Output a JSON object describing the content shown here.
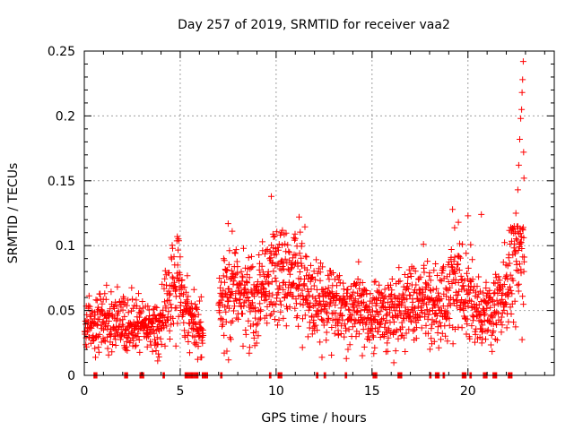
{
  "chart_data": {
    "type": "scatter",
    "title": "Day 257 of 2019, SRMTID for receiver vaa2",
    "xlabel": "GPS time / hours",
    "ylabel": "SRMTID / TECUs",
    "xlim": [
      0,
      24.5
    ],
    "ylim": [
      0,
      0.25
    ],
    "xticks": [
      0,
      5,
      10,
      15,
      20
    ],
    "xtick_labels": [
      "0",
      "5",
      "10",
      "15",
      "20"
    ],
    "yticks": [
      0,
      0.05,
      0.1,
      0.15,
      0.2,
      0.25
    ],
    "ytick_labels": [
      "0",
      "0.05",
      "0.1",
      "0.15",
      "0.2",
      "0.25"
    ],
    "grid": true,
    "marker": "+",
    "color": "#ff0000",
    "series": [
      {
        "name": "SRMTID",
        "profile": [
          [
            0.0,
            0.036
          ],
          [
            0.5,
            0.038
          ],
          [
            1.0,
            0.045
          ],
          [
            1.5,
            0.042
          ],
          [
            2.0,
            0.04
          ],
          [
            2.5,
            0.04
          ],
          [
            3.0,
            0.038
          ],
          [
            3.5,
            0.036
          ],
          [
            4.0,
            0.04
          ],
          [
            4.5,
            0.06
          ],
          [
            5.0,
            0.07
          ],
          [
            5.5,
            0.045
          ],
          [
            6.0,
            0.035
          ],
          [
            7.0,
            0.058
          ],
          [
            7.5,
            0.07
          ],
          [
            8.0,
            0.062
          ],
          [
            8.5,
            0.058
          ],
          [
            9.0,
            0.06
          ],
          [
            9.5,
            0.065
          ],
          [
            10.0,
            0.072
          ],
          [
            10.5,
            0.075
          ],
          [
            11.0,
            0.08
          ],
          [
            11.5,
            0.07
          ],
          [
            12.0,
            0.055
          ],
          [
            12.5,
            0.055
          ],
          [
            13.0,
            0.055
          ],
          [
            13.5,
            0.052
          ],
          [
            14.0,
            0.05
          ],
          [
            14.5,
            0.048
          ],
          [
            15.0,
            0.046
          ],
          [
            15.5,
            0.048
          ],
          [
            16.0,
            0.048
          ],
          [
            16.5,
            0.05
          ],
          [
            17.0,
            0.052
          ],
          [
            17.5,
            0.058
          ],
          [
            18.0,
            0.055
          ],
          [
            18.5,
            0.052
          ],
          [
            19.0,
            0.06
          ],
          [
            19.5,
            0.075
          ],
          [
            20.0,
            0.06
          ],
          [
            20.5,
            0.05
          ],
          [
            21.0,
            0.045
          ],
          [
            21.5,
            0.05
          ],
          [
            22.0,
            0.07
          ],
          [
            22.5,
            0.09
          ],
          [
            22.8,
            0.1
          ]
        ],
        "gaps": [
          [
            6.2,
            7.0
          ],
          [
            23.0,
            24.5
          ]
        ],
        "spikes": [
          [
            9.75,
            0.138
          ],
          [
            11.2,
            0.122
          ],
          [
            19.2,
            0.128
          ],
          [
            20.0,
            0.123
          ],
          [
            20.7,
            0.124
          ],
          [
            22.5,
            0.125
          ],
          [
            22.6,
            0.143
          ],
          [
            22.65,
            0.162
          ],
          [
            22.7,
            0.182
          ],
          [
            22.75,
            0.198
          ],
          [
            22.8,
            0.205
          ],
          [
            22.82,
            0.218
          ],
          [
            22.85,
            0.228
          ],
          [
            22.88,
            0.242
          ],
          [
            22.9,
            0.172
          ],
          [
            22.92,
            0.152
          ],
          [
            4.85,
            0.107
          ],
          [
            7.5,
            0.117
          ],
          [
            19.5,
            0.118
          ],
          [
            22.3,
            0.112
          ]
        ],
        "zero_marks": [
          [
            0.5,
            0.7
          ],
          [
            2.1,
            2.3
          ],
          [
            2.9,
            3.1
          ],
          [
            4.1,
            4.2
          ],
          [
            5.25,
            5.95
          ],
          [
            6.15,
            6.45
          ],
          [
            7.1,
            7.2
          ],
          [
            9.65,
            9.75
          ],
          [
            10.1,
            10.3
          ],
          [
            12.1,
            12.2
          ],
          [
            12.5,
            12.6
          ],
          [
            13.6,
            13.7
          ],
          [
            15.05,
            15.25
          ],
          [
            16.35,
            16.55
          ],
          [
            18.0,
            18.1
          ],
          [
            18.3,
            18.5
          ],
          [
            18.7,
            18.8
          ],
          [
            19.7,
            19.9
          ],
          [
            20.1,
            20.2
          ],
          [
            20.8,
            21.0
          ],
          [
            21.3,
            21.5
          ],
          [
            22.1,
            22.3
          ]
        ]
      }
    ]
  }
}
